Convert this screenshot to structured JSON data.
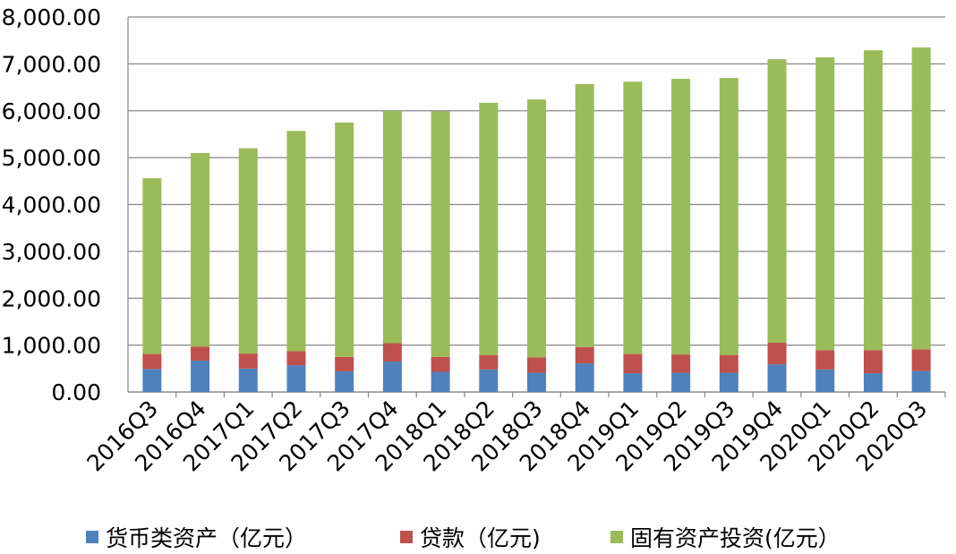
{
  "chart_data": {
    "type": "bar",
    "stacked": true,
    "categories": [
      "2016Q3",
      "2016Q4",
      "2017Q1",
      "2017Q2",
      "2017Q3",
      "2017Q4",
      "2018Q1",
      "2018Q2",
      "2018Q3",
      "2018Q4",
      "2019Q1",
      "2019Q2",
      "2019Q3",
      "2019Q4",
      "2020Q1",
      "2020Q2",
      "2020Q3"
    ],
    "series": [
      {
        "name": "货币类资产（亿元）",
        "color": "#4F81BD",
        "values": [
          490,
          670,
          500,
          570,
          440,
          650,
          430,
          480,
          410,
          610,
          400,
          410,
          410,
          590,
          480,
          400,
          450
        ]
      },
      {
        "name": "贷款（亿元)",
        "color": "#C0504D",
        "values": [
          320,
          300,
          320,
          300,
          310,
          390,
          320,
          310,
          330,
          350,
          410,
          390,
          380,
          460,
          410,
          490,
          460
        ]
      },
      {
        "name": "固有资产投资(亿元）",
        "color": "#9BBB59",
        "values": [
          3750,
          4130,
          4380,
          4700,
          5000,
          4960,
          5240,
          5380,
          5500,
          5610,
          5810,
          5880,
          5910,
          6050,
          6250,
          6400,
          6440
        ]
      }
    ],
    "ylim": [
      0,
      8000
    ],
    "yticks": [
      "0.00",
      "1,000.00",
      "2,000.00",
      "3,000.00",
      "4,000.00",
      "5,000.00",
      "6,000.00",
      "7,000.00",
      "8,000.00"
    ],
    "grid": true,
    "legend_position": "bottom",
    "title": "",
    "xlabel": "",
    "ylabel": ""
  }
}
